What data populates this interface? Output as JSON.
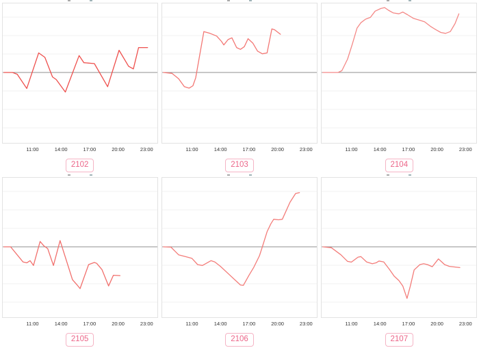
{
  "style": {
    "plot_border_color": "#e2e2e2",
    "grid_color": "#f1f1f1",
    "baseline_color": "#8f8f8f",
    "tick_label_color": "#303030",
    "badge_text_color": "#ec6588",
    "badge_border_color": "#f5b4c5",
    "background": "#ffffff"
  },
  "x_axis": {
    "tick_labels": [
      "11:00",
      "14:00",
      "17:00",
      "20:00",
      "23:00"
    ],
    "tick_hours": [
      11,
      14,
      17,
      20,
      23
    ],
    "domain_hours": [
      7.8,
      24.2
    ]
  },
  "chart_data": [
    {
      "type": "line",
      "title": "2102",
      "line_color": "#ee4f4c",
      "baseline": 0,
      "grid": true,
      "x_tick_labels": [
        "11:00",
        "14:00",
        "17:00",
        "20:00",
        "23:00"
      ],
      "x_domain": [
        7.8,
        24.2
      ],
      "y_domain": [
        -4.0,
        3.92
      ],
      "x": [
        8.0,
        8.9,
        9.4,
        10.4,
        11.65,
        12.3,
        13.1,
        13.5,
        14.45,
        15.9,
        16.4,
        17.5,
        18.9,
        20.1,
        21.1,
        21.6,
        22.15,
        23.1
      ],
      "values": [
        0,
        0,
        -0.1,
        -0.9,
        1.1,
        0.85,
        -0.25,
        -0.4,
        -1.1,
        0.95,
        0.55,
        0.5,
        -0.8,
        1.25,
        0.35,
        0.2,
        1.4,
        1.4
      ]
    },
    {
      "type": "line",
      "title": "2103",
      "line_color": "#f37774",
      "baseline": 0,
      "grid": true,
      "x_tick_labels": [
        "11:00",
        "14:00",
        "17:00",
        "20:00",
        "23:00"
      ],
      "x_domain": [
        7.8,
        24.2
      ],
      "y_domain": [
        -4.0,
        3.92
      ],
      "x": [
        8.0,
        8.9,
        9.6,
        10.2,
        10.7,
        11.1,
        11.4,
        12.25,
        12.9,
        13.6,
        14.1,
        14.35,
        14.8,
        15.2,
        15.7,
        16.1,
        16.5,
        16.9,
        17.4,
        17.9,
        18.4,
        18.9,
        19.4,
        19.7,
        20.3
      ],
      "values": [
        0,
        -0.05,
        -0.35,
        -0.8,
        -0.88,
        -0.75,
        -0.3,
        2.3,
        2.2,
        2.05,
        1.75,
        1.55,
        1.85,
        1.95,
        1.4,
        1.3,
        1.45,
        1.9,
        1.65,
        1.2,
        1.05,
        1.1,
        2.45,
        2.4,
        2.15
      ]
    },
    {
      "type": "line",
      "title": "2104",
      "line_color": "#f48886",
      "baseline": 0,
      "grid": true,
      "x_tick_labels": [
        "11:00",
        "14:00",
        "17:00",
        "20:00",
        "23:00"
      ],
      "x_domain": [
        7.8,
        24.2
      ],
      "y_domain": [
        -4.0,
        3.92
      ],
      "x": [
        8.0,
        9.6,
        10.0,
        10.6,
        11.1,
        11.6,
        12.0,
        12.5,
        13.0,
        13.5,
        14.1,
        14.5,
        14.9,
        15.4,
        16.0,
        16.4,
        16.9,
        17.5,
        18.1,
        18.7,
        19.3,
        19.9,
        20.4,
        20.9,
        21.4,
        21.9,
        22.3
      ],
      "values": [
        0,
        0,
        0.1,
        0.75,
        1.6,
        2.5,
        2.8,
        3.0,
        3.1,
        3.45,
        3.6,
        3.65,
        3.5,
        3.35,
        3.3,
        3.4,
        3.25,
        3.05,
        2.95,
        2.85,
        2.6,
        2.4,
        2.25,
        2.2,
        2.3,
        2.75,
        3.3
      ]
    },
    {
      "type": "line",
      "title": "2105",
      "line_color": "#f16f6c",
      "baseline": 0,
      "grid": true,
      "x_tick_labels": [
        "11:00",
        "14:00",
        "17:00",
        "20:00",
        "23:00"
      ],
      "x_domain": [
        7.8,
        24.2
      ],
      "y_domain": [
        -4.0,
        3.92
      ],
      "x": [
        8.0,
        8.7,
        10.0,
        10.4,
        10.75,
        11.1,
        11.8,
        12.2,
        12.6,
        13.2,
        13.9,
        15.2,
        15.7,
        16.0,
        16.9,
        17.5,
        17.75,
        18.3,
        19.0,
        19.5,
        20.2
      ],
      "values": [
        0,
        0,
        -0.85,
        -0.9,
        -0.78,
        -1.05,
        0.3,
        0.05,
        -0.1,
        -1.05,
        0.35,
        -1.85,
        -2.15,
        -2.35,
        -1.0,
        -0.88,
        -0.93,
        -1.28,
        -2.2,
        -1.6,
        -1.62
      ]
    },
    {
      "type": "line",
      "title": "2106",
      "line_color": "#f37c79",
      "baseline": 0,
      "grid": true,
      "x_tick_labels": [
        "11:00",
        "14:00",
        "17:00",
        "20:00",
        "23:00"
      ],
      "x_domain": [
        7.8,
        24.2
      ],
      "y_domain": [
        -4.0,
        3.92
      ],
      "x": [
        8.0,
        8.8,
        9.6,
        10.3,
        11.0,
        11.6,
        12.1,
        13.0,
        13.4,
        14.0,
        14.9,
        15.6,
        16.1,
        16.4,
        17.0,
        17.5,
        18.1,
        18.4,
        18.9,
        19.3,
        19.6,
        20.1,
        20.5,
        21.3,
        21.9,
        22.3
      ],
      "values": [
        0,
        -0.02,
        -0.45,
        -0.55,
        -0.65,
        -1.0,
        -1.05,
        -0.78,
        -0.85,
        -1.1,
        -1.55,
        -1.9,
        -2.15,
        -2.17,
        -1.6,
        -1.15,
        -0.5,
        0.0,
        0.85,
        1.3,
        1.55,
        1.52,
        1.55,
        2.5,
        3.0,
        3.05
      ]
    },
    {
      "type": "line",
      "title": "2107",
      "line_color": "#f37c79",
      "baseline": 0,
      "grid": true,
      "x_tick_labels": [
        "11:00",
        "14:00",
        "17:00",
        "20:00",
        "23:00"
      ],
      "x_domain": [
        7.8,
        24.2
      ],
      "y_domain": [
        -4.0,
        3.92
      ],
      "x": [
        8.0,
        8.9,
        9.9,
        10.6,
        11.0,
        11.7,
        12.0,
        12.6,
        13.2,
        13.6,
        13.9,
        14.4,
        15.0,
        15.5,
        16.0,
        16.4,
        16.85,
        17.2,
        17.6,
        18.2,
        18.6,
        19.0,
        19.5,
        20.15,
        20.5,
        20.8,
        21.3,
        22.4
      ],
      "values": [
        0,
        -0.05,
        -0.45,
        -0.82,
        -0.86,
        -0.58,
        -0.55,
        -0.85,
        -0.95,
        -0.9,
        -0.8,
        -0.85,
        -1.27,
        -1.65,
        -1.9,
        -2.2,
        -2.9,
        -2.2,
        -1.3,
        -1.0,
        -0.95,
        -1.0,
        -1.12,
        -0.68,
        -0.85,
        -1.0,
        -1.1,
        -1.17
      ]
    }
  ]
}
